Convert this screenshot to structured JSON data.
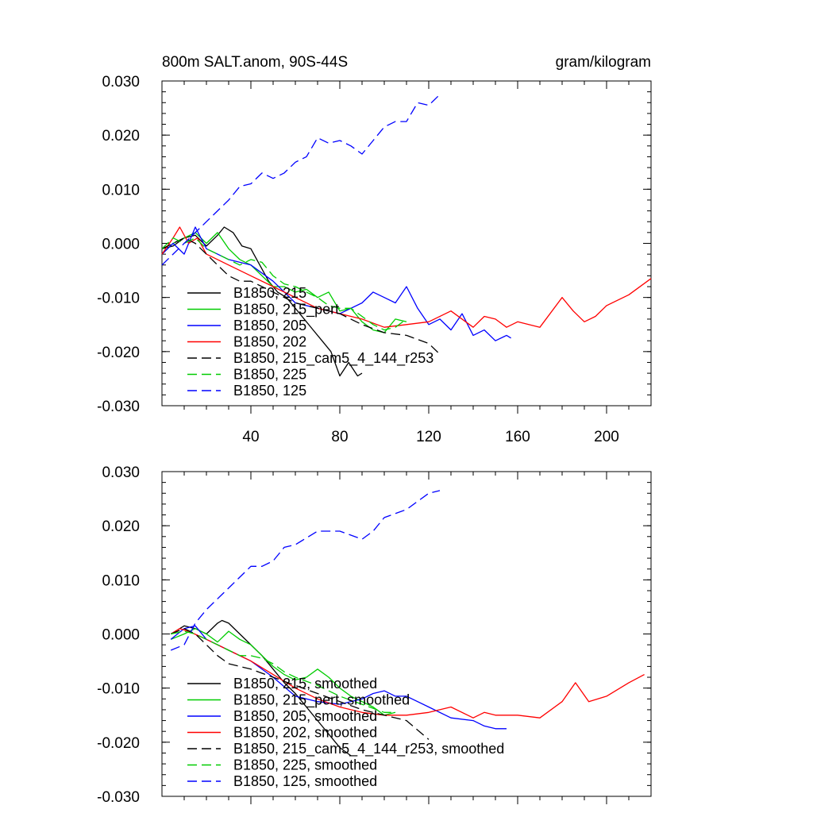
{
  "chart_data": [
    {
      "type": "line",
      "title": "800m SALT.anom, 90S-44S",
      "units": "gram/kilogram",
      "xlim": [
        0,
        220
      ],
      "ylim": [
        -0.03,
        0.03
      ],
      "x_ticks": [
        40,
        80,
        120,
        160,
        200
      ],
      "y_ticks": [
        0.03,
        0.02,
        0.01,
        0.0,
        -0.01,
        -0.02,
        -0.03
      ],
      "x_tick_labels": [
        "40",
        "80",
        "120",
        "160",
        "200"
      ],
      "y_tick_labels": [
        "0.030",
        "0.020",
        "0.010",
        "0.000",
        "-0.010",
        "-0.020",
        "-0.030"
      ],
      "legend_position": "bottom-left",
      "series": [
        {
          "name": "B1850, 215",
          "color": "#000000",
          "dash": "solid",
          "x": [
            0,
            5,
            10,
            15,
            20,
            25,
            28,
            32,
            36,
            40,
            44,
            48,
            52,
            56,
            60,
            64,
            68,
            72,
            76,
            80,
            84,
            88,
            90
          ],
          "y": [
            -0.001,
            -0.0005,
            0.001,
            0.0015,
            -0.0005,
            0.0015,
            0.003,
            0.002,
            -0.0005,
            -0.001,
            -0.004,
            -0.007,
            -0.009,
            -0.01,
            -0.012,
            -0.014,
            -0.016,
            -0.018,
            -0.02,
            -0.0245,
            -0.022,
            -0.0245,
            -0.024
          ]
        },
        {
          "name": "B1850, 215_pert",
          "color": "#00cc00",
          "dash": "solid",
          "x": [
            0,
            5,
            10,
            15,
            20,
            25,
            30,
            35,
            40,
            45,
            50,
            55,
            60,
            65,
            70,
            75,
            80,
            85,
            90,
            95,
            100,
            105,
            110
          ],
          "y": [
            -0.002,
            0.0,
            0.001,
            0.002,
            0.0,
            0.002,
            -0.001,
            -0.003,
            -0.004,
            -0.006,
            -0.008,
            -0.008,
            -0.009,
            -0.0085,
            -0.01,
            -0.009,
            -0.0125,
            -0.012,
            -0.0145,
            -0.016,
            -0.0165,
            -0.014,
            -0.0145
          ]
        },
        {
          "name": "B1850, 205",
          "color": "#0000ff",
          "dash": "solid",
          "x": [
            0,
            5,
            10,
            15,
            20,
            25,
            30,
            40,
            50,
            60,
            70,
            80,
            90,
            95,
            100,
            105,
            110,
            115,
            120,
            125,
            130,
            135,
            140,
            145,
            150,
            155,
            157
          ],
          "y": [
            -0.002,
            0.0,
            -0.002,
            0.003,
            -0.001,
            -0.002,
            -0.003,
            -0.004,
            -0.007,
            -0.011,
            -0.012,
            -0.013,
            -0.011,
            -0.009,
            -0.01,
            -0.011,
            -0.008,
            -0.012,
            -0.015,
            -0.014,
            -0.016,
            -0.013,
            -0.017,
            -0.016,
            -0.018,
            -0.017,
            -0.0175
          ]
        },
        {
          "name": "B1850, 202",
          "color": "#ff0000",
          "dash": "solid",
          "x": [
            0,
            5,
            8,
            12,
            16,
            20,
            30,
            40,
            50,
            60,
            70,
            80,
            90,
            100,
            110,
            120,
            130,
            140,
            145,
            150,
            155,
            160,
            170,
            180,
            185,
            190,
            195,
            200,
            210,
            220
          ],
          "y": [
            -0.002,
            0.001,
            0.003,
            0.0,
            0.001,
            -0.002,
            -0.004,
            -0.006,
            -0.008,
            -0.01,
            -0.012,
            -0.013,
            -0.014,
            -0.0155,
            -0.015,
            -0.0145,
            -0.0125,
            -0.0155,
            -0.0135,
            -0.014,
            -0.0155,
            -0.0145,
            -0.0155,
            -0.01,
            -0.0125,
            -0.0145,
            -0.0135,
            -0.0115,
            -0.0095,
            -0.0065
          ]
        },
        {
          "name": "B1850, 215_cam5_4_144_r253",
          "color": "#000000",
          "dash": "dashed",
          "x": [
            0,
            5,
            10,
            15,
            20,
            25,
            30,
            35,
            40,
            45,
            50,
            55,
            60,
            70,
            80,
            90,
            100,
            110,
            120,
            125
          ],
          "y": [
            -0.001,
            0.0,
            0.001,
            0.0,
            -0.002,
            -0.004,
            -0.006,
            -0.007,
            -0.007,
            -0.008,
            -0.009,
            -0.01,
            -0.011,
            -0.012,
            -0.013,
            -0.015,
            -0.0165,
            -0.017,
            -0.0185,
            -0.0205
          ]
        },
        {
          "name": "B1850, 225",
          "color": "#00cc00",
          "dash": "dashed",
          "x": [
            0,
            5,
            10,
            15,
            20,
            25,
            30,
            35,
            40,
            45,
            50,
            55,
            60,
            65,
            70,
            75,
            80,
            85,
            90,
            95,
            100,
            105,
            110
          ],
          "y": [
            -0.001,
            0.001,
            0.0,
            0.001,
            -0.001,
            -0.002,
            -0.003,
            -0.004,
            -0.003,
            -0.0035,
            -0.006,
            -0.0075,
            -0.008,
            -0.009,
            -0.01,
            -0.0115,
            -0.012,
            -0.012,
            -0.0135,
            -0.015,
            -0.016,
            -0.0155,
            -0.014
          ]
        },
        {
          "name": "B1850, 125",
          "color": "#0000ff",
          "dash": "dashed",
          "x": [
            0,
            5,
            10,
            15,
            20,
            25,
            30,
            35,
            40,
            45,
            50,
            55,
            60,
            65,
            70,
            75,
            80,
            85,
            90,
            95,
            100,
            105,
            110,
            115,
            120,
            125
          ],
          "y": [
            -0.004,
            -0.002,
            0.0,
            0.002,
            0.004,
            0.006,
            0.008,
            0.0105,
            0.011,
            0.013,
            0.012,
            0.013,
            0.015,
            0.016,
            0.0195,
            0.0185,
            0.019,
            0.018,
            0.0165,
            0.019,
            0.0215,
            0.0225,
            0.0225,
            0.026,
            0.0255,
            0.0275
          ]
        }
      ]
    },
    {
      "type": "line",
      "xlim": [
        0,
        220
      ],
      "ylim": [
        -0.03,
        0.03
      ],
      "x_ticks": [
        40,
        80,
        120,
        160,
        200
      ],
      "y_ticks": [
        0.03,
        0.02,
        0.01,
        0.0,
        -0.01,
        -0.02,
        -0.03
      ],
      "y_tick_labels": [
        "0.030",
        "0.020",
        "0.010",
        "0.000",
        "-0.010",
        "-0.020",
        "-0.030"
      ],
      "legend_position": "bottom-left",
      "series": [
        {
          "name": "B1850, 215, smoothed",
          "color": "#000000",
          "dash": "solid",
          "x": [
            4,
            10,
            15,
            20,
            25,
            27,
            30,
            35,
            40,
            45,
            50,
            55,
            60,
            70,
            80,
            85
          ],
          "y": [
            0.0,
            0.0015,
            0.001,
            0.0,
            0.002,
            0.0025,
            0.002,
            0.0,
            -0.002,
            -0.004,
            -0.0065,
            -0.009,
            -0.011,
            -0.016,
            -0.021,
            -0.0225
          ]
        },
        {
          "name": "B1850, 215_pert, smoothed",
          "color": "#00cc00",
          "dash": "solid",
          "x": [
            4,
            10,
            15,
            20,
            25,
            30,
            35,
            40,
            45,
            50,
            55,
            60,
            65,
            70,
            75,
            80,
            85,
            90,
            95,
            100,
            105
          ],
          "y": [
            -0.001,
            0.0,
            0.001,
            0.0,
            -0.0015,
            0.0005,
            -0.001,
            -0.002,
            -0.004,
            -0.006,
            -0.0075,
            -0.0085,
            -0.008,
            -0.0065,
            -0.008,
            -0.01,
            -0.0115,
            -0.0125,
            -0.0135,
            -0.015,
            -0.0145
          ]
        },
        {
          "name": "B1850, 205, smoothed",
          "color": "#0000ff",
          "dash": "solid",
          "x": [
            4,
            10,
            15,
            20,
            25,
            30,
            40,
            50,
            60,
            70,
            80,
            90,
            95,
            100,
            105,
            110,
            120,
            130,
            140,
            145,
            150,
            155
          ],
          "y": [
            -0.001,
            0.001,
            0.0015,
            -0.001,
            -0.002,
            -0.003,
            -0.005,
            -0.008,
            -0.0115,
            -0.0125,
            -0.013,
            -0.012,
            -0.011,
            -0.0105,
            -0.0115,
            -0.0115,
            -0.0135,
            -0.0155,
            -0.016,
            -0.017,
            -0.0175,
            -0.0175
          ]
        },
        {
          "name": "B1850, 202, smoothed",
          "color": "#ff0000",
          "dash": "solid",
          "x": [
            4,
            8,
            12,
            20,
            30,
            40,
            50,
            60,
            70,
            80,
            90,
            100,
            110,
            120,
            130,
            140,
            145,
            150,
            160,
            170,
            180,
            186,
            192,
            200,
            210,
            217
          ],
          "y": [
            0.0,
            0.001,
            0.0005,
            -0.001,
            -0.003,
            -0.005,
            -0.0075,
            -0.01,
            -0.012,
            -0.0135,
            -0.0145,
            -0.015,
            -0.015,
            -0.0145,
            -0.0135,
            -0.0155,
            -0.0145,
            -0.015,
            -0.015,
            -0.0155,
            -0.0125,
            -0.009,
            -0.0125,
            -0.0115,
            -0.009,
            -0.0075
          ]
        },
        {
          "name": "B1850, 215_cam5_4_144_r253, smoothed",
          "color": "#000000",
          "dash": "dashed",
          "x": [
            4,
            10,
            15,
            20,
            25,
            30,
            35,
            40,
            50,
            60,
            70,
            80,
            90,
            100,
            110,
            120
          ],
          "y": [
            0.0,
            0.001,
            0.0,
            -0.002,
            -0.004,
            -0.0055,
            -0.006,
            -0.0065,
            -0.008,
            -0.0095,
            -0.011,
            -0.0125,
            -0.014,
            -0.015,
            -0.016,
            -0.0195
          ]
        },
        {
          "name": "B1850, 225, smoothed",
          "color": "#00cc00",
          "dash": "dashed",
          "x": [
            4,
            10,
            15,
            20,
            25,
            30,
            35,
            40,
            45,
            50,
            55,
            60,
            70,
            80,
            90,
            100,
            105
          ],
          "y": [
            0.0,
            0.0005,
            0.0,
            -0.001,
            -0.002,
            -0.003,
            -0.004,
            -0.004,
            -0.0045,
            -0.0055,
            -0.007,
            -0.008,
            -0.0095,
            -0.0115,
            -0.013,
            -0.0145,
            -0.0145
          ]
        },
        {
          "name": "B1850, 125, smoothed",
          "color": "#0000ff",
          "dash": "dashed",
          "x": [
            4,
            10,
            15,
            20,
            30,
            40,
            45,
            50,
            55,
            60,
            70,
            80,
            90,
            95,
            100,
            110,
            120,
            125
          ],
          "y": [
            -0.003,
            -0.002,
            0.002,
            0.0045,
            0.0085,
            0.0125,
            0.0125,
            0.0135,
            0.016,
            0.0165,
            0.019,
            0.019,
            0.0175,
            0.019,
            0.0215,
            0.023,
            0.026,
            0.0265
          ]
        }
      ]
    }
  ]
}
